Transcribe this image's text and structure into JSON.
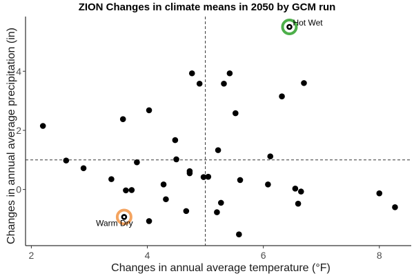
{
  "chart_data": {
    "type": "scatter",
    "title": "ZION Changes in climate means in 2050 by GCM run",
    "xlabel": "Changes in annual average temperature (°F)",
    "ylabel": "Changes in annual average precipitation (in)",
    "xlim": [
      1.9,
      8.55
    ],
    "ylim": [
      -1.9,
      5.85
    ],
    "xticks": [
      2,
      4,
      6,
      8
    ],
    "yticks": [
      0,
      2,
      4
    ],
    "grid": false,
    "vline": 5.0,
    "hline": 1.0,
    "point_color": "#000000",
    "points": [
      {
        "x": 2.2,
        "y": 2.15
      },
      {
        "x": 2.6,
        "y": 0.98
      },
      {
        "x": 2.9,
        "y": 0.72
      },
      {
        "x": 3.38,
        "y": 0.35
      },
      {
        "x": 3.58,
        "y": 2.38
      },
      {
        "x": 3.63,
        "y": -0.03
      },
      {
        "x": 3.73,
        "y": -0.02
      },
      {
        "x": 3.82,
        "y": 0.92
      },
      {
        "x": 4.03,
        "y": 2.68
      },
      {
        "x": 4.03,
        "y": -1.07
      },
      {
        "x": 4.28,
        "y": 0.17
      },
      {
        "x": 4.32,
        "y": -0.33
      },
      {
        "x": 4.48,
        "y": 1.67
      },
      {
        "x": 4.5,
        "y": 1.02
      },
      {
        "x": 4.67,
        "y": -0.73
      },
      {
        "x": 4.73,
        "y": 0.62
      },
      {
        "x": 4.73,
        "y": 0.55
      },
      {
        "x": 4.77,
        "y": 3.93
      },
      {
        "x": 4.9,
        "y": 3.58
      },
      {
        "x": 4.97,
        "y": 0.42
      },
      {
        "x": 5.05,
        "y": 0.43
      },
      {
        "x": 5.2,
        "y": -0.77
      },
      {
        "x": 5.22,
        "y": 1.33
      },
      {
        "x": 5.27,
        "y": -0.45
      },
      {
        "x": 5.32,
        "y": 3.58
      },
      {
        "x": 5.42,
        "y": 3.93
      },
      {
        "x": 5.52,
        "y": 2.58
      },
      {
        "x": 5.58,
        "y": -1.52
      },
      {
        "x": 5.6,
        "y": 0.32
      },
      {
        "x": 6.08,
        "y": 0.17
      },
      {
        "x": 6.12,
        "y": 1.12
      },
      {
        "x": 6.32,
        "y": 3.15
      },
      {
        "x": 6.55,
        "y": 0.03
      },
      {
        "x": 6.6,
        "y": -0.48
      },
      {
        "x": 6.65,
        "y": -0.07
      },
      {
        "x": 6.7,
        "y": 3.6
      },
      {
        "x": 8.0,
        "y": -0.13
      },
      {
        "x": 8.27,
        "y": -0.6
      }
    ],
    "highlights": [
      {
        "label": "Hot Wet",
        "x": 6.45,
        "y": 5.5,
        "color": "#4daf4a",
        "label_side": "right"
      },
      {
        "label": "Warm Dry",
        "x": 3.6,
        "y": -0.93,
        "color": "#f4a460",
        "label_side": "below"
      }
    ]
  }
}
